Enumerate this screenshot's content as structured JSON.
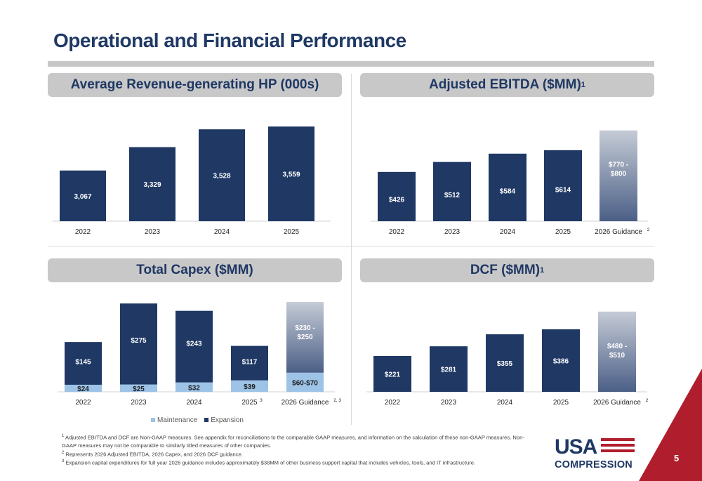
{
  "page": {
    "title": "Operational and Financial Performance",
    "page_number": "5"
  },
  "panels": {
    "hp": {
      "title": "Average Revenue-generating HP (000s)"
    },
    "ebitda": {
      "title": "Adjusted EBITDA ($MM)",
      "title_sup": "1"
    },
    "capex": {
      "title": "Total Capex ($MM)"
    },
    "dcf": {
      "title": "DCF ($MM)",
      "title_sup": "1"
    }
  },
  "legend": {
    "maintenance": "Maintenance",
    "expansion": "Expansion"
  },
  "colors": {
    "navy": "#1f3864",
    "light_blue": "#9dc3e6",
    "guidance_top": "#c5cbd6",
    "guidance_bottom": "#4b5f86",
    "accent_red": "#b01e2e"
  },
  "footnotes": [
    {
      "num": "1",
      "text": "Adjusted EBITDA and DCF are Non-GAAP measures. See appendix for reconciliations to the comparable GAAP measures, and information on the calculation of these non-GAAP measures. Non-GAAP measures may not be comparable to similarly titled measures of other companies."
    },
    {
      "num": "2",
      "text": "Represents 2026 Adjusted EBITDA, 2026 Capex, and 2026 DCF guidance."
    },
    {
      "num": "3",
      "text": "Expansion capital expenditures for full year 2026 guidance includes approximately $38MM of other business support capital that includes vehicles, tools, and IT infrastructure."
    }
  ],
  "logo": {
    "line1": "USA",
    "line2": "COMPRESSION"
  },
  "chart_data": [
    {
      "id": "hp",
      "type": "bar",
      "title": "Average Revenue-generating HP (000s)",
      "categories": [
        "2022",
        "2023",
        "2024",
        "2025"
      ],
      "category_sups": [
        "",
        "",
        "",
        ""
      ],
      "values": [
        3067,
        3329,
        3528,
        3559
      ],
      "labels": [
        "3,067",
        "3,329",
        "3,528",
        "3,559"
      ],
      "ylim": [
        2500,
        3600
      ],
      "grid": false
    },
    {
      "id": "ebitda",
      "type": "bar",
      "title": "Adjusted EBITDA ($MM)",
      "categories": [
        "2022",
        "2023",
        "2024",
        "2025",
        "2026 Guidance"
      ],
      "category_sups": [
        "",
        "",
        "",
        "",
        "2"
      ],
      "values": [
        426,
        512,
        584,
        614,
        785
      ],
      "labels": [
        "$426",
        "$512",
        "$584",
        "$614",
        "$770 -|$800"
      ],
      "guidance_index": 4,
      "ylim": [
        0,
        850
      ],
      "grid": false
    },
    {
      "id": "capex",
      "type": "bar",
      "stacked": true,
      "title": "Total Capex ($MM)",
      "categories": [
        "2022",
        "2023",
        "2024",
        "2025",
        "2026 Guidance"
      ],
      "category_sups": [
        "",
        "",
        "",
        "3",
        "2, 3"
      ],
      "series": [
        {
          "name": "Maintenance",
          "values": [
            24,
            25,
            32,
            39,
            65
          ],
          "labels": [
            "$24",
            "$25",
            "$32",
            "$39",
            "$60-$70"
          ]
        },
        {
          "name": "Expansion",
          "values": [
            145,
            275,
            243,
            117,
            240
          ],
          "labels": [
            "$145",
            "$275",
            "$243",
            "$117",
            "$230 -|$250"
          ]
        }
      ],
      "guidance_index": 4,
      "ylim": [
        0,
        310
      ],
      "grid": false,
      "legend": "bottom-left"
    },
    {
      "id": "dcf",
      "type": "bar",
      "title": "DCF ($MM)",
      "categories": [
        "2022",
        "2023",
        "2024",
        "2025",
        "2026 Guidance"
      ],
      "category_sups": [
        "",
        "",
        "",
        "",
        "2"
      ],
      "values": [
        221,
        281,
        355,
        386,
        495
      ],
      "labels": [
        "$221",
        "$281",
        "$355",
        "$386",
        "$480 -|$510"
      ],
      "guidance_index": 4,
      "ylim": [
        0,
        520
      ],
      "grid": false
    }
  ]
}
